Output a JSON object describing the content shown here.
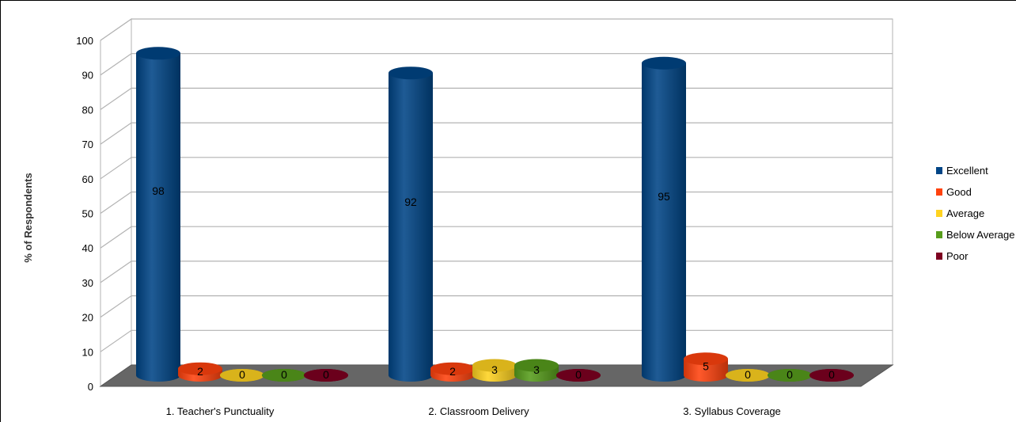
{
  "chart_data": {
    "type": "bar",
    "title": "",
    "xlabel": "",
    "ylabel": "% of Respondents",
    "ylim": [
      0,
      100
    ],
    "yticks": [
      0,
      10,
      20,
      30,
      40,
      50,
      60,
      70,
      80,
      90,
      100
    ],
    "grid": true,
    "legend_position": "right",
    "categories": [
      "1. Teacher's Punctuality",
      "2. Classroom Delivery",
      "3. Syllabus Coverage"
    ],
    "series": [
      {
        "name": "Excellent",
        "color": "#004586",
        "values": [
          98,
          92,
          95
        ]
      },
      {
        "name": "Good",
        "color": "#ff420e",
        "values": [
          2,
          2,
          5
        ]
      },
      {
        "name": "Average",
        "color": "#ffd320",
        "values": [
          0,
          3,
          0
        ]
      },
      {
        "name": "Below Average",
        "color": "#579d1c",
        "values": [
          0,
          3,
          0
        ]
      },
      {
        "name": "Poor",
        "color": "#7e0021",
        "values": [
          0,
          0,
          0
        ]
      }
    ]
  }
}
